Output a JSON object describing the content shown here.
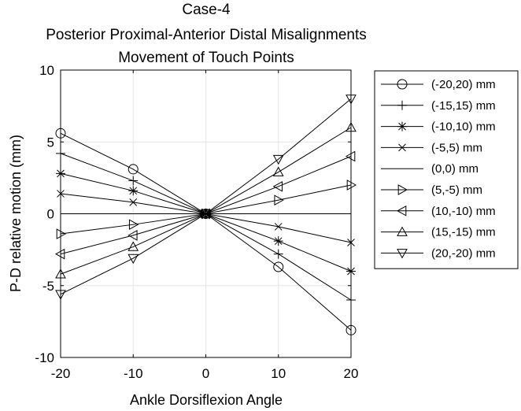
{
  "chart_data": {
    "type": "line",
    "title_lines": [
      "Case-4",
      "Posterior Proximal-Anterior Distal Misalignments",
      "Movement of Touch Points"
    ],
    "xlabel": "Ankle Dorsiflexion Angle",
    "ylabel": "P-D relative motion (mm)",
    "xlim": [
      -20,
      20
    ],
    "ylim": [
      -10,
      10
    ],
    "xticks": [
      -20,
      -10,
      0,
      10,
      20
    ],
    "yticks": [
      -10,
      -5,
      0,
      5,
      10
    ],
    "grid": true,
    "legend_position": "outside-right-top",
    "x": [
      -20,
      -10,
      0,
      10,
      20
    ],
    "series": [
      {
        "name": "(-20,20) mm",
        "marker": "circle",
        "values": [
          5.6,
          3.1,
          0,
          -3.7,
          -8.1
        ]
      },
      {
        "name": "(-15,15) mm",
        "marker": "plus",
        "values": [
          4.2,
          2.3,
          0,
          -2.8,
          -6.0
        ]
      },
      {
        "name": "(-10,10) mm",
        "marker": "asterisk",
        "values": [
          2.8,
          1.6,
          0,
          -1.9,
          -4.0
        ]
      },
      {
        "name": "(-5,5) mm",
        "marker": "x",
        "values": [
          1.4,
          0.8,
          0,
          -0.9,
          -2.0
        ]
      },
      {
        "name": "(0,0) mm",
        "marker": "none",
        "values": [
          0,
          0,
          0,
          0,
          0
        ]
      },
      {
        "name": "(5,-5) mm",
        "marker": "triangle-right",
        "values": [
          -1.4,
          -0.75,
          0,
          0.95,
          2.0
        ]
      },
      {
        "name": "(10,-10) mm",
        "marker": "triangle-left",
        "values": [
          -2.8,
          -1.5,
          0,
          1.9,
          4.0
        ]
      },
      {
        "name": "(15,-15) mm",
        "marker": "triangle-up",
        "values": [
          -4.2,
          -2.3,
          0,
          2.9,
          6.0
        ]
      },
      {
        "name": "(20,-20) mm",
        "marker": "triangle-down",
        "values": [
          -5.6,
          -3.1,
          0,
          3.8,
          8.0
        ]
      }
    ]
  }
}
